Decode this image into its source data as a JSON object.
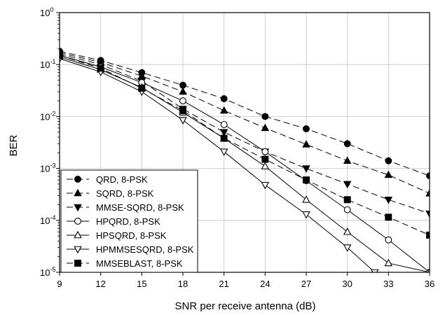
{
  "chart_data": {
    "type": "line",
    "xlabel": "SNR per receive antenna (dB)",
    "ylabel": "BER",
    "x_ticks": [
      9,
      12,
      15,
      18,
      21,
      24,
      27,
      30,
      33,
      36
    ],
    "x_tick_labels": [
      "9",
      "12",
      "15",
      "18",
      "21",
      "24",
      "27",
      "30",
      "33",
      "36"
    ],
    "y_scale": "log",
    "y_ticks": [
      1e-05,
      0.0001,
      0.001,
      0.01,
      0.1,
      1
    ],
    "y_tick_labels": [
      {
        "base": "10",
        "exp": "-5"
      },
      {
        "base": "10",
        "exp": "-4"
      },
      {
        "base": "10",
        "exp": "-3"
      },
      {
        "base": "10",
        "exp": "-2"
      },
      {
        "base": "10",
        "exp": "-1"
      },
      {
        "base": "10",
        "exp": "0"
      }
    ],
    "xlim": [
      9,
      36
    ],
    "ylim": [
      1e-05,
      1
    ],
    "grid": true,
    "legend_position": "bottom-left",
    "series": [
      {
        "name": "QRD, 8-PSK",
        "marker": "circle",
        "filled": true,
        "line": "dashed",
        "x": [
          9,
          12,
          15,
          18,
          21,
          24,
          27,
          30,
          33,
          36
        ],
        "y": [
          0.18,
          0.12,
          0.07,
          0.04,
          0.022,
          0.01,
          0.0058,
          0.003,
          0.0014,
          0.00072
        ]
      },
      {
        "name": "SQRD, 8-PSK",
        "marker": "triangle-up",
        "filled": true,
        "line": "dashed",
        "x": [
          9,
          12,
          15,
          18,
          21,
          24,
          27,
          30,
          33,
          36
        ],
        "y": [
          0.17,
          0.11,
          0.06,
          0.03,
          0.013,
          0.006,
          0.0029,
          0.0014,
          0.00075,
          0.00033
        ]
      },
      {
        "name": "MMSE-SQRD, 8-PSK",
        "marker": "triangle-down",
        "filled": true,
        "line": "dashed",
        "x": [
          9,
          12,
          15,
          18,
          21,
          24,
          27,
          30,
          33,
          36
        ],
        "y": [
          0.16,
          0.1,
          0.048,
          0.014,
          0.005,
          0.0021,
          0.001,
          0.0005,
          0.00025,
          0.000135
        ]
      },
      {
        "name": "HPQRD, 8-PSK",
        "marker": "circle",
        "filled": false,
        "line": "solid",
        "x": [
          9,
          12,
          15,
          18,
          21,
          24,
          27,
          30,
          33,
          36
        ],
        "y": [
          0.15,
          0.09,
          0.045,
          0.02,
          0.007,
          0.0021,
          0.00058,
          0.00016,
          4.2e-05,
          1e-05
        ]
      },
      {
        "name": "HPSQRD, 8-PSK",
        "marker": "triangle-up",
        "filled": false,
        "line": "solid",
        "x": [
          9,
          12,
          15,
          18,
          21,
          24,
          27,
          30,
          33,
          36
        ],
        "y": [
          0.14,
          0.08,
          0.036,
          0.012,
          0.0038,
          0.0011,
          0.00025,
          6e-05,
          1.5e-05,
          3.2e-06
        ]
      },
      {
        "name": "HPMMSESQRD, 8-PSK",
        "marker": "triangle-down",
        "filled": false,
        "line": "solid",
        "x": [
          9,
          12,
          15,
          18,
          21,
          24,
          27,
          30,
          32
        ],
        "y": [
          0.13,
          0.072,
          0.03,
          0.0085,
          0.0021,
          0.00048,
          0.00013,
          3e-05,
          1e-05
        ]
      },
      {
        "name": "MMSEBLAST, 8-PSK",
        "marker": "square",
        "filled": true,
        "line": "dashed",
        "x": [
          9,
          12,
          15,
          18,
          21,
          24,
          27,
          30,
          33,
          36
        ],
        "y": [
          0.15,
          0.085,
          0.035,
          0.013,
          0.0038,
          0.0015,
          0.0006,
          0.00025,
          0.000115,
          5.2e-05
        ]
      }
    ]
  }
}
